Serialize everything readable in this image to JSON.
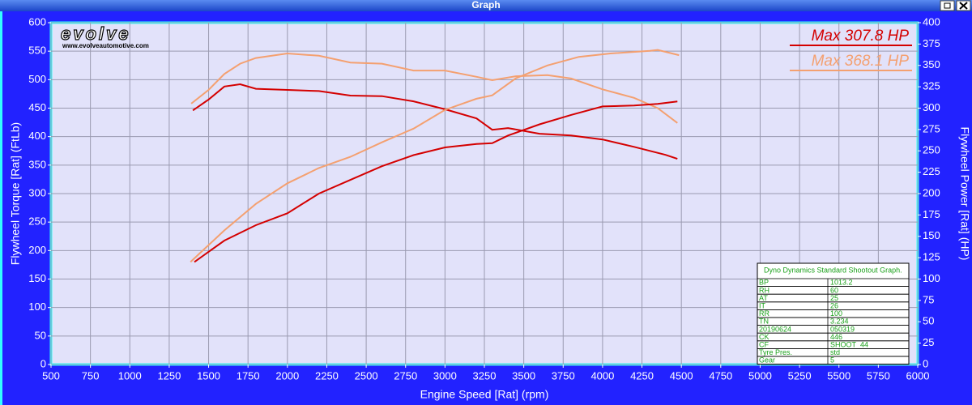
{
  "window_title": "Graph",
  "logo": {
    "text": "evolve",
    "url": "www.evolveautomotive.com"
  },
  "info_table": {
    "title": "Dyno Dynamics Standard Shootout Graph.",
    "rows": [
      [
        "BP",
        "1013.2"
      ],
      [
        "RH",
        "60"
      ],
      [
        "AT",
        "25"
      ],
      [
        "IT",
        "26"
      ],
      [
        "RR",
        "100"
      ],
      [
        "TN",
        "3.234"
      ],
      [
        "20190624",
        "050319"
      ],
      [
        "CK",
        "446"
      ],
      [
        "CF",
        "SHOOT_44"
      ],
      [
        "Tyre Pres.",
        "std"
      ],
      [
        "Gear",
        "5"
      ]
    ]
  },
  "chart_data": {
    "type": "line",
    "x_label": "Engine Speed [Rat] (rpm)",
    "y_label": "Flywheel Torque [Rat] (FtLb)",
    "y2_label": "Flywheel Power [Rat] (HP)",
    "annotations": [
      {
        "text": "Max 307.8 HP",
        "color": "#d40000"
      },
      {
        "text": "Max 368.1 HP",
        "color": "#f4a070"
      }
    ],
    "xlim": [
      500,
      6000
    ],
    "xticks": [
      500,
      750,
      1000,
      1250,
      1500,
      1750,
      2000,
      2250,
      2500,
      2750,
      3000,
      3250,
      3500,
      3750,
      4000,
      4250,
      4500,
      4750,
      5000,
      5250,
      5500,
      5750,
      6000
    ],
    "ylim": [
      0,
      600
    ],
    "yticks": [
      0,
      50,
      100,
      150,
      200,
      250,
      300,
      350,
      400,
      450,
      500,
      550,
      600
    ],
    "y2lim": [
      0,
      400
    ],
    "y2ticks": [
      0,
      25,
      50,
      75,
      100,
      125,
      150,
      175,
      200,
      225,
      250,
      275,
      300,
      325,
      350,
      375,
      400
    ],
    "grid": true,
    "series": [
      {
        "color": "#d40000",
        "x": [
          1400,
          1500,
          1600,
          1700,
          1800,
          2000,
          2200,
          2400,
          2600,
          2800,
          3000,
          3200,
          3300,
          3400,
          3600,
          3800,
          4000,
          4200,
          4400,
          4475
        ],
        "values": [
          446,
          465,
          488,
          492,
          484,
          482,
          480,
          472,
          471,
          462,
          448,
          432,
          412,
          415,
          405,
          402,
          395,
          382,
          368,
          361
        ]
      },
      {
        "color": "#f4a070",
        "x": [
          1390,
          1500,
          1600,
          1700,
          1800,
          2000,
          2200,
          2400,
          2600,
          2800,
          3000,
          3200,
          3300,
          3450,
          3650,
          3800,
          4000,
          4200,
          4350,
          4475
        ],
        "values": [
          458,
          482,
          510,
          528,
          538,
          546,
          542,
          530,
          528,
          516,
          516,
          505,
          499,
          506,
          508,
          502,
          483,
          468,
          450,
          424
        ]
      },
      {
        "color": "#d40000",
        "axis": "y2",
        "x": [
          1410,
          1600,
          1800,
          2000,
          2200,
          2400,
          2600,
          2800,
          3000,
          3200,
          3300,
          3400,
          3600,
          3800,
          4000,
          4200,
          4350,
          4475
        ],
        "values": [
          120,
          145,
          163,
          177,
          200,
          216,
          232,
          245,
          254,
          258,
          259,
          268,
          281,
          292,
          302,
          303,
          305,
          307.8
        ]
      },
      {
        "color": "#f4a070",
        "axis": "y2",
        "x": [
          1385,
          1600,
          1800,
          2000,
          2200,
          2400,
          2600,
          2800,
          3000,
          3200,
          3300,
          3450,
          3650,
          3850,
          4050,
          4300,
          4350,
          4485
        ],
        "values": [
          120,
          157,
          188,
          212,
          230,
          243,
          260,
          276,
          298,
          311,
          315,
          335,
          350,
          360,
          364,
          367,
          368.1,
          362
        ]
      }
    ]
  }
}
